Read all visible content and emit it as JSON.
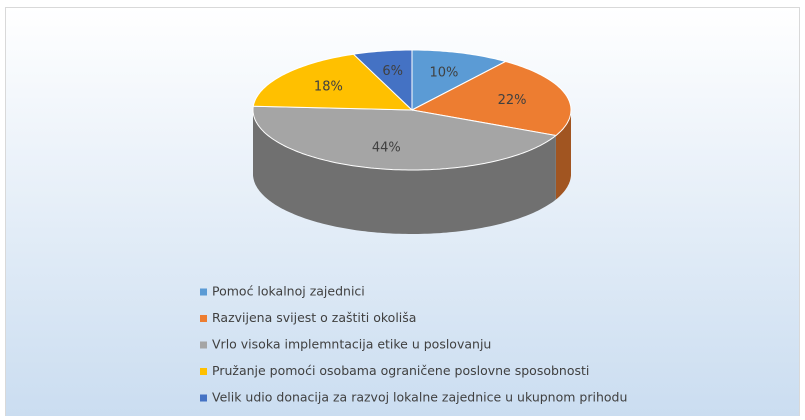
{
  "chart_data": {
    "type": "pie",
    "categories": [
      "Pomoć lokalnoj zajednici",
      "Razvijena svijest o zaštiti okoliša",
      "Vrlo visoka implemntacija etike u poslovanju",
      "Pružanje pomoći osobama ograničene poslovne sposobnosti",
      "Velik udio donacija za razvoj lokalne zajednice u ukupnom prihodu"
    ],
    "values": [
      10,
      22,
      44,
      18,
      6
    ],
    "value_labels": [
      "10%",
      "22%",
      "44%",
      "18%",
      "6%"
    ],
    "colors": [
      "#5b9bd5",
      "#ed7d31",
      "#a5a5a5",
      "#ffc000",
      "#4472c4"
    ],
    "legend": "bottom"
  }
}
